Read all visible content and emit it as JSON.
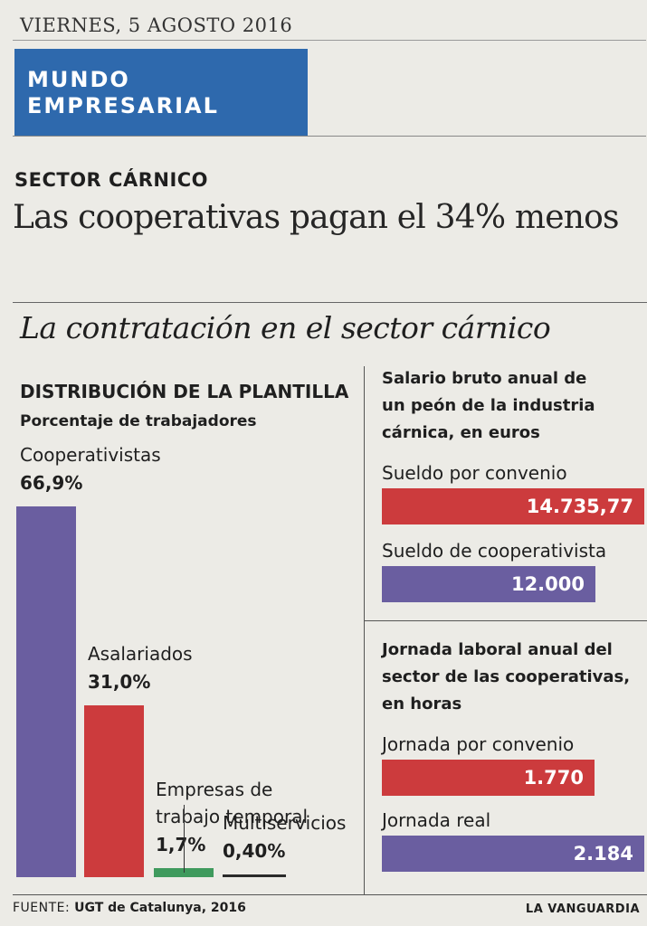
{
  "header": {
    "date": "VIERNES, 5 AGOSTO 2016",
    "section_line1": "MUNDO",
    "section_line2": "EMPRESARIAL",
    "section_color": "#2e69ad"
  },
  "article": {
    "kicker": "SECTOR CÁRNICO",
    "headline": "Las cooperativas pagan el 34% menos"
  },
  "infographic": {
    "title": "La contratación en el sector cárnico"
  },
  "chart_data": [
    {
      "type": "bar",
      "title": "DISTRIBUCIÓN DE LA PLANTILLA",
      "subtitle": "Porcentaje de trabajadores",
      "categories": [
        "Cooperativistas",
        "Asalariados",
        "Empresas de trabajo temporal",
        "Multiservicios"
      ],
      "label_lines": [
        [
          "Cooperativistas"
        ],
        [
          "Asalariados"
        ],
        [
          "Empresas de",
          "trabajo temporal"
        ],
        [
          "Multiservicios"
        ]
      ],
      "values": [
        66.9,
        31.0,
        1.7,
        0.4
      ],
      "value_labels": [
        "66,9%",
        "31,0%",
        "1,7%",
        "0,40%"
      ],
      "colors": [
        "#6a5ea0",
        "#cc3b3d",
        "#3f9a5d",
        "#2a2a2a"
      ],
      "ylim": [
        0,
        66.9
      ]
    },
    {
      "type": "bar",
      "orientation": "horizontal",
      "title_lines": [
        "Salario bruto anual de",
        "un peón de la industria",
        "cárnica, en euros"
      ],
      "categories": [
        "Sueldo por convenio",
        "Sueldo de cooperativista"
      ],
      "values": [
        14735.77,
        12000
      ],
      "value_labels": [
        "14.735,77",
        "12.000"
      ],
      "colors": [
        "#cc3b3d",
        "#6a5ea0"
      ],
      "xlim": [
        0,
        14735.77
      ]
    },
    {
      "type": "bar",
      "orientation": "horizontal",
      "title_lines": [
        "Jornada laboral anual del",
        "sector de las cooperativas,",
        "en horas"
      ],
      "categories": [
        "Jornada por convenio",
        "Jornada real"
      ],
      "values": [
        1770,
        2184
      ],
      "value_labels": [
        "1.770",
        "2.184"
      ],
      "colors": [
        "#cc3b3d",
        "#6a5ea0"
      ],
      "xlim": [
        0,
        2184
      ]
    }
  ],
  "footer": {
    "source_label": "FUENTE:",
    "source_text": "UGT de Catalunya, 2016",
    "brand": "LA VANGUARDIA"
  }
}
